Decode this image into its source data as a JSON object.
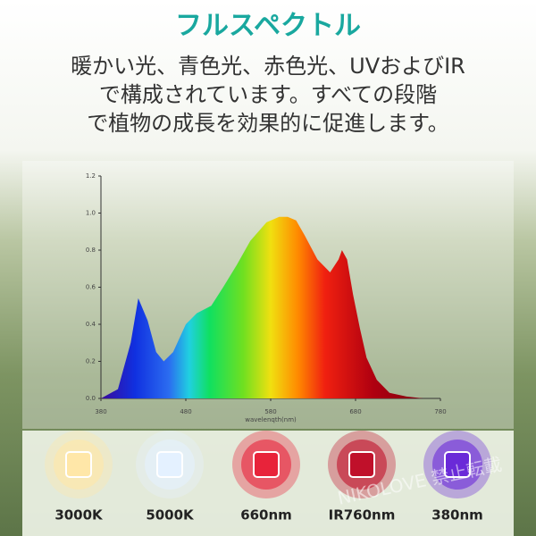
{
  "title": "フルスペクトル",
  "subtitle": [
    "暖かい光、青色光、赤色光、UVおよびIR",
    "で構成されています。すべての段階",
    "で植物の成長を効果的に促進します。"
  ],
  "chart_data": {
    "type": "area",
    "x": [
      380,
      400,
      415,
      424,
      435,
      445,
      454,
      465,
      480,
      493,
      510,
      524,
      540,
      556,
      575,
      590,
      600,
      610,
      620,
      635,
      650,
      660,
      664,
      670,
      677,
      685,
      693,
      705,
      720,
      740,
      760,
      780
    ],
    "values": [
      0,
      0.05,
      0.3,
      0.54,
      0.42,
      0.25,
      0.2,
      0.25,
      0.4,
      0.46,
      0.5,
      0.6,
      0.72,
      0.85,
      0.95,
      0.98,
      0.98,
      0.96,
      0.88,
      0.75,
      0.68,
      0.75,
      0.8,
      0.75,
      0.56,
      0.38,
      0.22,
      0.1,
      0.03,
      0.01,
      0,
      0
    ],
    "xlabel": "wavelenqth(nm)",
    "xlim": [
      380,
      780
    ],
    "xticks": [
      380,
      480,
      580,
      680,
      780
    ],
    "ylim": [
      0,
      1.2
    ],
    "yticks": [
      {
        "value": 0,
        "label": "0.0"
      },
      0.2,
      0.4,
      0.6,
      0.8,
      {
        "value": 1,
        "label": "1.0"
      },
      1.2
    ]
  },
  "leds": [
    {
      "label": "3000K",
      "color": "#ffe7a8"
    },
    {
      "label": "5000K",
      "color": "#e4f1ff"
    },
    {
      "label": "660nm",
      "color": "#e8233a"
    },
    {
      "label": "IR760nm",
      "color": "#c0102a"
    },
    {
      "label": "380nm",
      "color": "#6a2ad8"
    }
  ],
  "watermark": "NIKOLOVE  禁止転載"
}
